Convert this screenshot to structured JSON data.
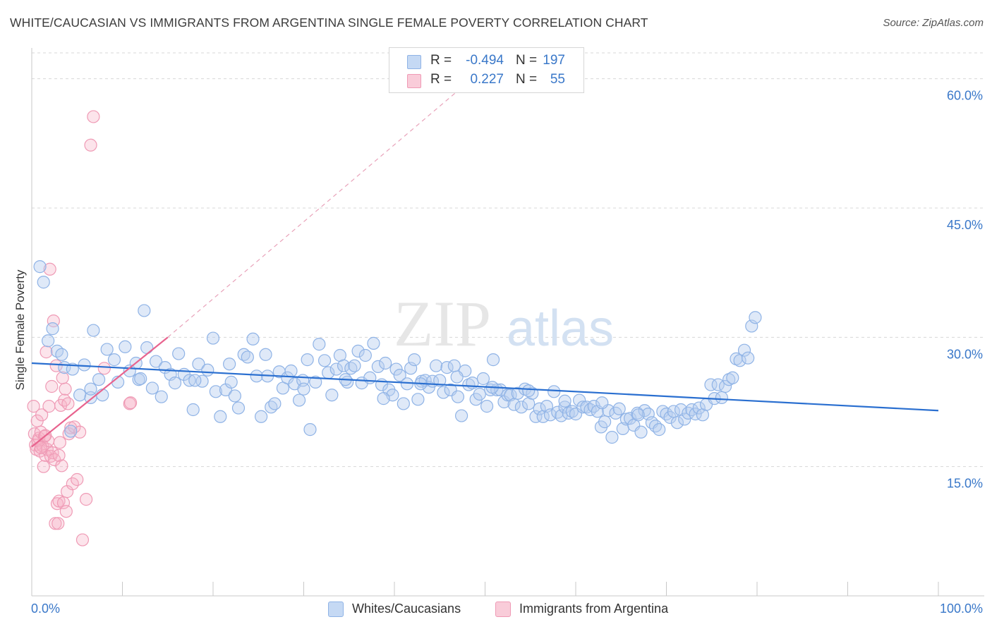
{
  "title": "WHITE/CAUCASIAN VS IMMIGRANTS FROM ARGENTINA SINGLE FEMALE POVERTY CORRELATION CHART",
  "source": "Source: ZipAtlas.com",
  "watermark": {
    "zip": "ZIP",
    "atlas": "atlas"
  },
  "colors": {
    "blue": "#3a78c9",
    "blue_line": "#2a6fd0",
    "pink_line": "#e8638e",
    "grid": "#d8d8d8",
    "tick_label": "#3a78c9"
  },
  "legend": {
    "rows": [
      {
        "r_label": "R =",
        "r_value": "-0.494",
        "n_label": "N =",
        "n_value": "197"
      },
      {
        "r_label": "R =",
        "r_value": "0.227",
        "n_label": "N =",
        "n_value": "55"
      }
    ]
  },
  "bottom_legend": {
    "blue": "Whites/Caucasians",
    "pink": "Immigrants from Argentina"
  },
  "chart_data": {
    "type": "scatter",
    "title": "WHITE/CAUCASIAN VS IMMIGRANTS FROM ARGENTINA SINGLE FEMALE POVERTY CORRELATION CHART",
    "xlabel": "",
    "ylabel": "Single Female Poverty",
    "xlim": [
      0,
      100
    ],
    "ylim": [
      0,
      63
    ],
    "x_tick_labels": [
      "0.0%",
      "100.0%"
    ],
    "y_ticks": [
      15,
      30,
      45,
      60
    ],
    "y_tick_labels": [
      "15.0%",
      "30.0%",
      "45.0%",
      "60.0%"
    ],
    "grid": true,
    "series": [
      {
        "name": "Whites/Caucasians",
        "color": "#8fb3e6",
        "points": [
          [
            0.9,
            38.2
          ],
          [
            1.3,
            36.4
          ],
          [
            1.8,
            29.6
          ],
          [
            2.3,
            31.0
          ],
          [
            2.8,
            28.4
          ],
          [
            3.3,
            28.0
          ],
          [
            3.6,
            26.5
          ],
          [
            4.3,
            19.1
          ],
          [
            4.5,
            26.3
          ],
          [
            5.3,
            23.3
          ],
          [
            5.8,
            26.8
          ],
          [
            6.5,
            23.0
          ],
          [
            6.8,
            30.8
          ],
          [
            7.4,
            25.1
          ],
          [
            7.8,
            23.3
          ],
          [
            8.3,
            28.6
          ],
          [
            9.1,
            27.4
          ],
          [
            9.5,
            24.8
          ],
          [
            10.3,
            28.9
          ],
          [
            10.8,
            26.1
          ],
          [
            11.5,
            27.0
          ],
          [
            11.8,
            25.1
          ],
          [
            12.4,
            33.1
          ],
          [
            12.7,
            28.8
          ],
          [
            13.3,
            24.1
          ],
          [
            13.7,
            27.2
          ],
          [
            14.3,
            23.1
          ],
          [
            14.7,
            26.5
          ],
          [
            15.3,
            25.7
          ],
          [
            15.8,
            24.7
          ],
          [
            16.2,
            28.1
          ],
          [
            16.8,
            25.7
          ],
          [
            17.4,
            25.0
          ],
          [
            17.8,
            21.6
          ],
          [
            18.4,
            26.9
          ],
          [
            18.8,
            24.9
          ],
          [
            19.4,
            26.2
          ],
          [
            20.0,
            29.9
          ],
          [
            20.3,
            23.7
          ],
          [
            20.8,
            20.8
          ],
          [
            21.4,
            23.9
          ],
          [
            21.8,
            26.9
          ],
          [
            22.4,
            23.2
          ],
          [
            22.8,
            21.8
          ],
          [
            23.4,
            28.0
          ],
          [
            23.8,
            27.7
          ],
          [
            24.4,
            29.8
          ],
          [
            24.8,
            25.5
          ],
          [
            25.3,
            20.8
          ],
          [
            25.8,
            28.0
          ],
          [
            26.4,
            21.9
          ],
          [
            26.8,
            22.3
          ],
          [
            27.3,
            26.0
          ],
          [
            27.7,
            24.1
          ],
          [
            28.2,
            25.3
          ],
          [
            28.6,
            26.1
          ],
          [
            29.0,
            24.6
          ],
          [
            29.5,
            22.7
          ],
          [
            29.9,
            25.0
          ],
          [
            30.4,
            27.4
          ],
          [
            30.7,
            19.3
          ],
          [
            31.3,
            24.8
          ],
          [
            31.7,
            29.2
          ],
          [
            32.3,
            27.3
          ],
          [
            32.7,
            25.9
          ],
          [
            33.1,
            23.3
          ],
          [
            33.6,
            26.3
          ],
          [
            34.0,
            27.9
          ],
          [
            34.4,
            26.7
          ],
          [
            34.8,
            24.8
          ],
          [
            35.2,
            26.4
          ],
          [
            35.6,
            26.7
          ],
          [
            36.0,
            28.4
          ],
          [
            36.4,
            24.7
          ],
          [
            36.8,
            27.9
          ],
          [
            37.3,
            25.3
          ],
          [
            37.7,
            29.3
          ],
          [
            38.2,
            26.6
          ],
          [
            38.6,
            24.5
          ],
          [
            39.0,
            27.0
          ],
          [
            39.4,
            23.9
          ],
          [
            39.8,
            23.3
          ],
          [
            40.2,
            26.3
          ],
          [
            40.6,
            25.6
          ],
          [
            41.0,
            22.3
          ],
          [
            41.4,
            24.6
          ],
          [
            41.8,
            26.4
          ],
          [
            42.2,
            27.4
          ],
          [
            42.6,
            22.8
          ],
          [
            43.0,
            24.9
          ],
          [
            43.4,
            25.0
          ],
          [
            43.8,
            24.2
          ],
          [
            44.2,
            24.9
          ],
          [
            44.6,
            26.7
          ],
          [
            45.0,
            25.0
          ],
          [
            45.4,
            23.6
          ],
          [
            45.8,
            26.5
          ],
          [
            46.2,
            23.9
          ],
          [
            46.6,
            26.7
          ],
          [
            47.0,
            23.1
          ],
          [
            47.4,
            20.9
          ],
          [
            47.8,
            26.1
          ],
          [
            48.2,
            24.5
          ],
          [
            48.6,
            24.7
          ],
          [
            49.0,
            22.8
          ],
          [
            49.4,
            23.4
          ],
          [
            49.8,
            25.2
          ],
          [
            50.2,
            22.0
          ],
          [
            50.6,
            23.9
          ],
          [
            50.9,
            27.4
          ],
          [
            51.3,
            23.9
          ],
          [
            51.7,
            23.9
          ],
          [
            52.1,
            22.5
          ],
          [
            52.5,
            23.3
          ],
          [
            52.8,
            23.3
          ],
          [
            53.2,
            22.2
          ],
          [
            53.6,
            23.5
          ],
          [
            54.0,
            21.9
          ],
          [
            54.4,
            24.0
          ],
          [
            54.8,
            22.3
          ],
          [
            55.2,
            23.5
          ],
          [
            55.6,
            20.8
          ],
          [
            56.0,
            21.7
          ],
          [
            56.4,
            20.8
          ],
          [
            56.8,
            22.0
          ],
          [
            57.2,
            21.0
          ],
          [
            57.6,
            23.7
          ],
          [
            58.0,
            21.3
          ],
          [
            58.4,
            20.9
          ],
          [
            58.8,
            21.9
          ],
          [
            59.2,
            21.2
          ],
          [
            59.6,
            21.4
          ],
          [
            60.0,
            21.1
          ],
          [
            60.4,
            22.7
          ],
          [
            60.8,
            21.9
          ],
          [
            61.2,
            21.9
          ],
          [
            61.6,
            21.6
          ],
          [
            62.0,
            22.0
          ],
          [
            62.4,
            21.4
          ],
          [
            62.8,
            19.6
          ],
          [
            63.2,
            20.2
          ],
          [
            63.6,
            21.5
          ],
          [
            64.0,
            18.4
          ],
          [
            64.4,
            21.2
          ],
          [
            64.8,
            21.7
          ],
          [
            65.2,
            19.4
          ],
          [
            65.6,
            20.5
          ],
          [
            66.0,
            20.6
          ],
          [
            66.4,
            19.8
          ],
          [
            66.8,
            21.2
          ],
          [
            67.2,
            19.0
          ],
          [
            67.6,
            21.5
          ],
          [
            68.0,
            21.1
          ],
          [
            68.4,
            20.1
          ],
          [
            68.8,
            19.7
          ],
          [
            69.2,
            19.3
          ],
          [
            69.6,
            21.4
          ],
          [
            70.0,
            21.1
          ],
          [
            70.4,
            20.7
          ],
          [
            70.8,
            21.4
          ],
          [
            71.2,
            20.1
          ],
          [
            71.6,
            21.6
          ],
          [
            72.0,
            20.5
          ],
          [
            72.4,
            21.2
          ],
          [
            72.8,
            21.6
          ],
          [
            73.2,
            21.1
          ],
          [
            73.6,
            21.8
          ],
          [
            74.0,
            21.0
          ],
          [
            74.4,
            22.2
          ],
          [
            74.9,
            24.5
          ],
          [
            75.3,
            22.9
          ],
          [
            75.7,
            24.5
          ],
          [
            76.1,
            23.0
          ],
          [
            76.5,
            24.3
          ],
          [
            76.9,
            25.1
          ],
          [
            77.3,
            25.3
          ],
          [
            77.7,
            27.5
          ],
          [
            78.1,
            27.3
          ],
          [
            78.6,
            28.5
          ],
          [
            79.0,
            27.6
          ],
          [
            79.4,
            31.3
          ],
          [
            79.8,
            32.3
          ],
          [
            6.5,
            24.0
          ],
          [
            12.0,
            25.2
          ],
          [
            18.0,
            25.0
          ],
          [
            22.0,
            24.8
          ],
          [
            26.0,
            25.5
          ],
          [
            30.0,
            24.0
          ],
          [
            34.6,
            25.1
          ],
          [
            38.8,
            22.9
          ],
          [
            42.9,
            24.6
          ],
          [
            46.9,
            25.4
          ],
          [
            50.8,
            24.2
          ],
          [
            54.8,
            23.8
          ],
          [
            58.8,
            22.6
          ],
          [
            62.9,
            22.4
          ],
          [
            66.9,
            21.0
          ]
        ]
      },
      {
        "name": "Immigrants from Argentina",
        "color": "#ef9ab5",
        "points": [
          [
            0.2,
            22.0
          ],
          [
            0.3,
            18.8
          ],
          [
            0.4,
            17.5
          ],
          [
            0.5,
            17.0
          ],
          [
            0.6,
            20.3
          ],
          [
            0.7,
            18.0
          ],
          [
            0.8,
            18.3
          ],
          [
            0.9,
            16.8
          ],
          [
            1.0,
            19.0
          ],
          [
            1.1,
            21.0
          ],
          [
            1.2,
            17.4
          ],
          [
            1.3,
            15.0
          ],
          [
            1.4,
            18.5
          ],
          [
            1.5,
            16.3
          ],
          [
            1.6,
            28.3
          ],
          [
            1.7,
            17.0
          ],
          [
            1.8,
            18.0
          ],
          [
            1.9,
            22.0
          ],
          [
            2.0,
            37.9
          ],
          [
            2.1,
            16.2
          ],
          [
            2.2,
            24.3
          ],
          [
            2.3,
            16.6
          ],
          [
            2.4,
            31.9
          ],
          [
            2.5,
            15.8
          ],
          [
            2.6,
            8.4
          ],
          [
            2.7,
            26.7
          ],
          [
            2.8,
            10.7
          ],
          [
            2.9,
            8.4
          ],
          [
            3.0,
            11.0
          ],
          [
            3.1,
            17.8
          ],
          [
            3.2,
            22.1
          ],
          [
            3.3,
            15.1
          ],
          [
            3.4,
            25.3
          ],
          [
            3.5,
            10.8
          ],
          [
            3.6,
            22.7
          ],
          [
            3.7,
            24.0
          ],
          [
            3.8,
            9.8
          ],
          [
            3.9,
            12.1
          ],
          [
            4.0,
            22.3
          ],
          [
            4.1,
            18.8
          ],
          [
            4.3,
            19.5
          ],
          [
            4.5,
            13.0
          ],
          [
            4.7,
            19.6
          ],
          [
            5.0,
            13.5
          ],
          [
            5.3,
            19.0
          ],
          [
            5.6,
            6.5
          ],
          [
            6.0,
            11.2
          ],
          [
            6.5,
            52.3
          ],
          [
            6.8,
            55.6
          ],
          [
            8.0,
            26.4
          ],
          [
            10.8,
            22.3
          ],
          [
            10.9,
            22.4
          ],
          [
            1.0,
            17.2
          ],
          [
            1.5,
            18.6
          ],
          [
            3.0,
            16.3
          ]
        ]
      }
    ],
    "trend_lines": [
      {
        "series": "Whites/Caucasians",
        "from": [
          0,
          27.0
        ],
        "to": [
          100,
          21.5
        ]
      },
      {
        "series": "Immigrants from Argentina",
        "from": [
          0,
          17.3
        ],
        "to": [
          15,
          30.0
        ],
        "dashed_extension_to": [
          47,
          58.6
        ]
      }
    ]
  }
}
